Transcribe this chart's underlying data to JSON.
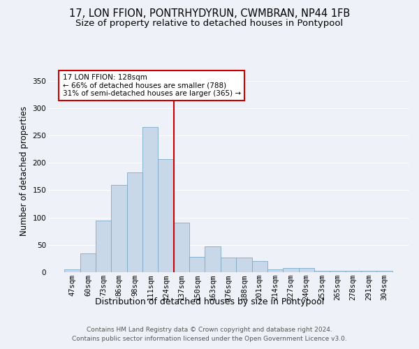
{
  "title": "17, LON FFION, PONTRHYDYRUN, CWMBRAN, NP44 1FB",
  "subtitle": "Size of property relative to detached houses in Pontypool",
  "xlabel": "Distribution of detached houses by size in Pontypool",
  "ylabel": "Number of detached properties",
  "categories": [
    "47sqm",
    "60sqm",
    "73sqm",
    "86sqm",
    "98sqm",
    "111sqm",
    "124sqm",
    "137sqm",
    "150sqm",
    "163sqm",
    "176sqm",
    "188sqm",
    "201sqm",
    "214sqm",
    "227sqm",
    "240sqm",
    "253sqm",
    "265sqm",
    "278sqm",
    "291sqm",
    "304sqm"
  ],
  "bar_heights": [
    5,
    35,
    95,
    160,
    183,
    265,
    207,
    90,
    28,
    47,
    27,
    27,
    21,
    5,
    8,
    8,
    3,
    2,
    2,
    2,
    3
  ],
  "bar_color": "#c8d8e8",
  "bar_edgecolor": "#7aaac8",
  "vline_x": 6.5,
  "vline_color": "#cc0000",
  "ylim": [
    0,
    370
  ],
  "yticks": [
    0,
    50,
    100,
    150,
    200,
    250,
    300,
    350
  ],
  "annotation_text": "17 LON FFION: 128sqm\n← 66% of detached houses are smaller (788)\n31% of semi-detached houses are larger (365) →",
  "annotation_box_facecolor": "white",
  "annotation_box_edgecolor": "#cc0000",
  "bg_color": "#eef2f8",
  "footer1": "Contains HM Land Registry data © Crown copyright and database right 2024.",
  "footer2": "Contains public sector information licensed under the Open Government Licence v3.0.",
  "title_fontsize": 10.5,
  "subtitle_fontsize": 9.5,
  "xlabel_fontsize": 9,
  "ylabel_fontsize": 8.5,
  "tick_fontsize": 7.5,
  "footer_fontsize": 6.5
}
